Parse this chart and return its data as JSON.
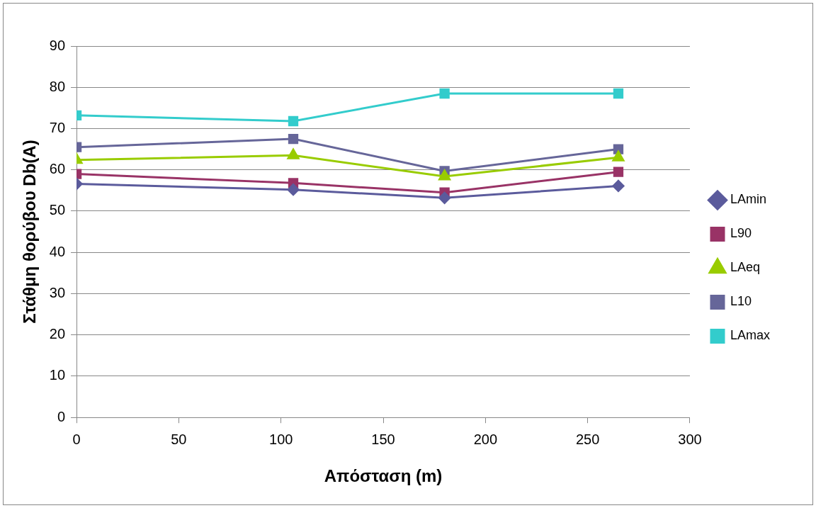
{
  "chart_data": {
    "type": "line",
    "xlabel": "Απόσταση (m)",
    "ylabel": "Στάθμη θορύβου Db(A)",
    "xlim": [
      0,
      300
    ],
    "xticks": [
      0,
      50,
      100,
      150,
      200,
      250,
      300
    ],
    "ylim": [
      0,
      90
    ],
    "yticks": [
      0,
      10,
      20,
      30,
      40,
      50,
      60,
      70,
      80,
      90
    ],
    "grid": "y",
    "legend": "right",
    "line_style": "solid",
    "x": [
      0,
      106,
      180,
      265
    ],
    "series": [
      {
        "name": "LAmin",
        "color": "#5b5b9c",
        "marker": "diamond",
        "values": [
          56.6,
          55.2,
          53.2,
          56.1
        ]
      },
      {
        "name": "L90",
        "color": "#993366",
        "marker": "square",
        "values": [
          59,
          56.8,
          54.5,
          59.5
        ]
      },
      {
        "name": "LAeq",
        "color": "#99cc00",
        "marker": "triangle",
        "values": [
          62.4,
          63.5,
          58.4,
          63
        ]
      },
      {
        "name": "L10",
        "color": "#666699",
        "marker": "square",
        "values": [
          65.5,
          67.5,
          59.7,
          65
        ]
      },
      {
        "name": "LAmax",
        "color": "#33cccc",
        "marker": "square",
        "values": [
          73.2,
          71.8,
          78.5,
          78.5
        ]
      }
    ]
  }
}
